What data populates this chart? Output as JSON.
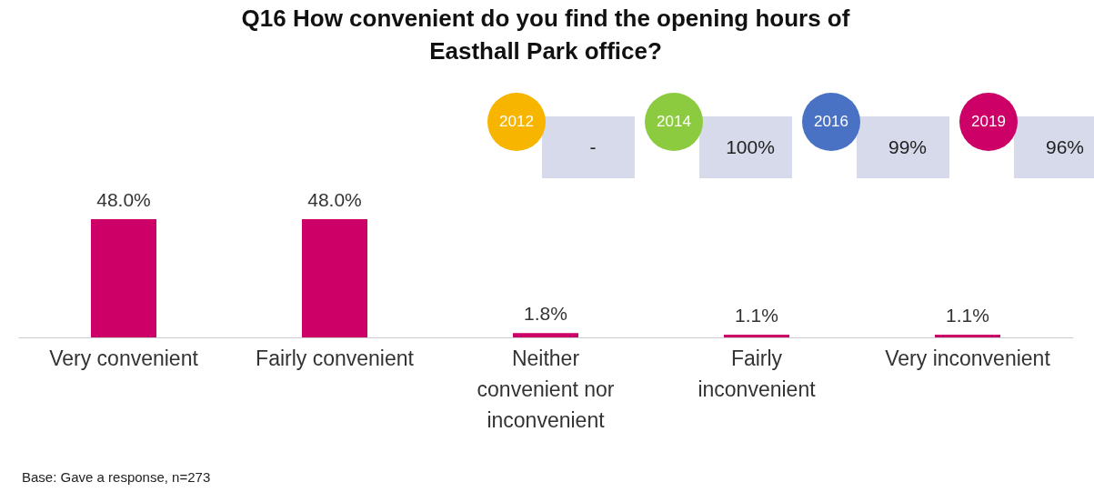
{
  "chart_data": {
    "type": "bar",
    "title": "Q16 How convenient do you find the opening hours of Easthall Park office?",
    "categories": [
      "Very convenient",
      "Fairly convenient",
      "Neither convenient nor inconvenient",
      "Fairly inconvenient",
      "Very inconvenient"
    ],
    "values": [
      48.0,
      48.0,
      1.8,
      1.1,
      1.1
    ],
    "value_labels": [
      "48.0%",
      "48.0%",
      "1.8%",
      "1.1%",
      "1.1%"
    ],
    "color": "#cc0066",
    "annotations": [
      "2012",
      "-",
      "2014",
      "100%",
      "2016",
      "99%",
      "2019",
      "96%",
      "Base: Gave a response, n=273"
    ]
  }
}
